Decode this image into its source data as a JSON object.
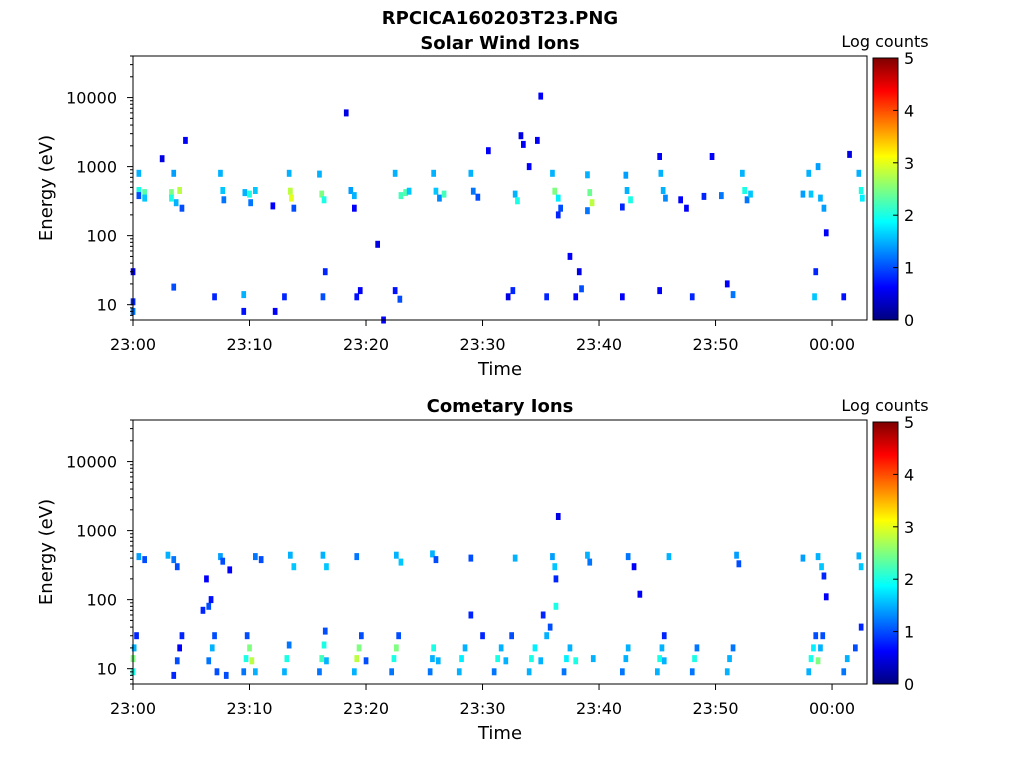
{
  "figure_title": "RPCICA160203T23.PNG",
  "colormap": [
    "#00007f",
    "#0000ff",
    "#007fff",
    "#00ffff",
    "#7fff7f",
    "#ffff00",
    "#ff7f00",
    "#ff0000",
    "#7f0000"
  ],
  "chart_data": [
    {
      "type": "heatmap",
      "title": "Solar Wind Ions",
      "xlabel": "Time",
      "ylabel": "Energy (eV)",
      "yscale": "log",
      "xlim": [
        "23:00",
        "00:03"
      ],
      "ylim": [
        6,
        40000
      ],
      "x_ticks": [
        "23:00",
        "23:10",
        "23:20",
        "23:30",
        "23:40",
        "23:50",
        "00:00"
      ],
      "y_ticks": [
        "10",
        "100",
        "1000",
        "10000"
      ],
      "colorbar_label": "Log counts",
      "colorbar_ticks": [
        "0",
        "1",
        "2",
        "3",
        "4",
        "5"
      ],
      "clim": [
        0,
        5
      ],
      "grid": false,
      "cells": [
        [
          0.0,
          8,
          1.2
        ],
        [
          0.0,
          11,
          0.8
        ],
        [
          0.0,
          30,
          0.6
        ],
        [
          0.5,
          800,
          1.5
        ],
        [
          0.5,
          450,
          2.0
        ],
        [
          0.5,
          380,
          1.0
        ],
        [
          1.0,
          420,
          2.3
        ],
        [
          1.0,
          350,
          1.6
        ],
        [
          2.5,
          1300,
          0.5
        ],
        [
          3.3,
          420,
          2.5
        ],
        [
          3.3,
          350,
          2.0
        ],
        [
          3.5,
          800,
          1.4
        ],
        [
          3.7,
          300,
          1.5
        ],
        [
          4.0,
          450,
          2.8
        ],
        [
          4.2,
          250,
          1.0
        ],
        [
          3.5,
          18,
          1.0
        ],
        [
          4.5,
          2400,
          0.6
        ],
        [
          7.0,
          13,
          0.8
        ],
        [
          7.5,
          800,
          1.5
        ],
        [
          7.7,
          450,
          1.6
        ],
        [
          7.8,
          330,
          1.2
        ],
        [
          9.5,
          8,
          0.7
        ],
        [
          9.5,
          14,
          1.5
        ],
        [
          9.6,
          420,
          1.5
        ],
        [
          10.0,
          400,
          2.0
        ],
        [
          10.1,
          300,
          1.2
        ],
        [
          10.5,
          450,
          1.6
        ],
        [
          12.0,
          270,
          0.6
        ],
        [
          12.2,
          8,
          0.6
        ],
        [
          13.0,
          13,
          0.8
        ],
        [
          13.4,
          800,
          1.5
        ],
        [
          13.5,
          440,
          2.8
        ],
        [
          13.6,
          350,
          3.0
        ],
        [
          13.8,
          250,
          1.0
        ],
        [
          16.0,
          780,
          1.5
        ],
        [
          16.2,
          400,
          2.5
        ],
        [
          16.4,
          330,
          2.0
        ],
        [
          16.3,
          13,
          1.0
        ],
        [
          16.5,
          30,
          0.8
        ],
        [
          18.3,
          6000,
          0.5
        ],
        [
          18.7,
          450,
          1.4
        ],
        [
          19.0,
          380,
          1.5
        ],
        [
          19.2,
          13,
          0.7
        ],
        [
          19.5,
          16,
          0.6
        ],
        [
          19.0,
          250,
          0.6
        ],
        [
          21.0,
          75,
          0.5
        ],
        [
          21.5,
          6,
          0.6
        ],
        [
          22.5,
          800,
          1.5
        ],
        [
          22.5,
          16,
          0.7
        ],
        [
          22.9,
          12,
          1.0
        ],
        [
          23.0,
          380,
          2.2
        ],
        [
          23.4,
          420,
          2.3
        ],
        [
          23.7,
          440,
          1.6
        ],
        [
          25.8,
          800,
          1.5
        ],
        [
          26.0,
          440,
          1.6
        ],
        [
          26.3,
          350,
          1.3
        ],
        [
          26.7,
          400,
          2.2
        ],
        [
          29.0,
          800,
          1.5
        ],
        [
          29.2,
          440,
          1.2
        ],
        [
          29.6,
          360,
          1.0
        ],
        [
          30.5,
          1700,
          0.6
        ],
        [
          32.2,
          13,
          0.5
        ],
        [
          32.6,
          16,
          0.8
        ],
        [
          32.8,
          400,
          1.5
        ],
        [
          33.0,
          320,
          2.0
        ],
        [
          33.3,
          2800,
          0.5
        ],
        [
          33.5,
          2100,
          0.6
        ],
        [
          34.0,
          1000,
          0.6
        ],
        [
          34.7,
          2400,
          0.6
        ],
        [
          35.0,
          10500,
          0.6
        ],
        [
          35.5,
          13,
          0.8
        ],
        [
          36.0,
          800,
          1.5
        ],
        [
          36.2,
          440,
          2.5
        ],
        [
          36.5,
          350,
          1.8
        ],
        [
          36.7,
          250,
          1.0
        ],
        [
          36.5,
          200,
          0.8
        ],
        [
          37.5,
          50,
          0.6
        ],
        [
          38.0,
          13,
          0.6
        ],
        [
          38.3,
          30,
          0.5
        ],
        [
          38.5,
          17,
          1.0
        ],
        [
          39.0,
          760,
          1.5
        ],
        [
          39.2,
          420,
          2.4
        ],
        [
          39.4,
          300,
          2.8
        ],
        [
          39.0,
          230,
          1.2
        ],
        [
          42.0,
          13,
          0.6
        ],
        [
          42.3,
          750,
          1.4
        ],
        [
          42.4,
          450,
          1.5
        ],
        [
          42.7,
          330,
          2.0
        ],
        [
          42.0,
          260,
          0.8
        ],
        [
          45.2,
          1400,
          0.6
        ],
        [
          45.3,
          800,
          1.5
        ],
        [
          45.5,
          450,
          1.5
        ],
        [
          45.7,
          350,
          1.3
        ],
        [
          45.2,
          16,
          0.6
        ],
        [
          47.0,
          330,
          0.6
        ],
        [
          47.5,
          250,
          0.6
        ],
        [
          48.0,
          13,
          0.8
        ],
        [
          49.0,
          370,
          0.8
        ],
        [
          49.7,
          1400,
          0.6
        ],
        [
          50.5,
          380,
          1.2
        ],
        [
          51.0,
          20,
          0.6
        ],
        [
          51.5,
          14,
          1.2
        ],
        [
          52.3,
          800,
          1.5
        ],
        [
          52.5,
          450,
          2.0
        ],
        [
          52.7,
          330,
          1.2
        ],
        [
          53.0,
          400,
          1.6
        ],
        [
          57.5,
          400,
          1.4
        ],
        [
          58.0,
          800,
          1.5
        ],
        [
          58.2,
          400,
          1.6
        ],
        [
          58.5,
          13,
          1.6
        ],
        [
          58.6,
          30,
          0.8
        ],
        [
          58.8,
          1000,
          1.4
        ],
        [
          59.0,
          350,
          1.5
        ],
        [
          59.3,
          250,
          1.4
        ],
        [
          59.5,
          110,
          0.6
        ],
        [
          61.0,
          13,
          0.7
        ],
        [
          61.5,
          1500,
          0.5
        ],
        [
          62.3,
          800,
          1.5
        ],
        [
          62.5,
          450,
          2.0
        ],
        [
          62.6,
          350,
          1.8
        ]
      ]
    },
    {
      "type": "heatmap",
      "title": "Cometary Ions",
      "xlabel": "Time",
      "ylabel": "Energy (eV)",
      "yscale": "log",
      "xlim": [
        "23:00",
        "00:03"
      ],
      "ylim": [
        6,
        40000
      ],
      "x_ticks": [
        "23:00",
        "23:10",
        "23:20",
        "23:30",
        "23:40",
        "23:50",
        "00:00"
      ],
      "y_ticks": [
        "10",
        "100",
        "1000",
        "10000"
      ],
      "colorbar_label": "Log counts",
      "colorbar_ticks": [
        "0",
        "1",
        "2",
        "3",
        "4",
        "5"
      ],
      "clim": [
        0,
        5
      ],
      "grid": false,
      "cells": [
        [
          0.0,
          9,
          2.0
        ],
        [
          0.0,
          14,
          2.5
        ],
        [
          0.1,
          20,
          1.5
        ],
        [
          0.3,
          30,
          0.8
        ],
        [
          0.5,
          420,
          1.4
        ],
        [
          1.0,
          380,
          1.0
        ],
        [
          3.0,
          440,
          1.5
        ],
        [
          3.5,
          380,
          1.2
        ],
        [
          3.8,
          300,
          1.0
        ],
        [
          3.5,
          8,
          0.8
        ],
        [
          3.8,
          13,
          1.0
        ],
        [
          4.0,
          20,
          0.6
        ],
        [
          4.2,
          30,
          0.8
        ],
        [
          6.0,
          70,
          0.8
        ],
        [
          6.3,
          200,
          0.6
        ],
        [
          6.5,
          80,
          1.0
        ],
        [
          6.7,
          100,
          0.7
        ],
        [
          6.5,
          13,
          1.2
        ],
        [
          6.8,
          20,
          1.5
        ],
        [
          7.0,
          30,
          1.0
        ],
        [
          7.2,
          9,
          1.0
        ],
        [
          7.5,
          420,
          1.4
        ],
        [
          7.7,
          360,
          1.0
        ],
        [
          8.0,
          8,
          1.0
        ],
        [
          8.3,
          270,
          0.6
        ],
        [
          9.5,
          9,
          1.2
        ],
        [
          9.7,
          14,
          2.0
        ],
        [
          10.0,
          20,
          2.5
        ],
        [
          10.2,
          13,
          2.8
        ],
        [
          10.5,
          9,
          1.5
        ],
        [
          9.8,
          30,
          1.0
        ],
        [
          10.5,
          420,
          1.2
        ],
        [
          11.0,
          380,
          1.0
        ],
        [
          13.0,
          9,
          1.5
        ],
        [
          13.2,
          14,
          2.0
        ],
        [
          13.4,
          22,
          1.2
        ],
        [
          13.5,
          440,
          1.5
        ],
        [
          13.8,
          300,
          1.6
        ],
        [
          16.0,
          9,
          1.2
        ],
        [
          16.2,
          14,
          2.2
        ],
        [
          16.4,
          22,
          2.0
        ],
        [
          16.6,
          13,
          1.5
        ],
        [
          16.5,
          35,
          1.0
        ],
        [
          16.3,
          440,
          1.5
        ],
        [
          16.6,
          300,
          1.6
        ],
        [
          19.0,
          9,
          1.5
        ],
        [
          19.2,
          14,
          2.8
        ],
        [
          19.4,
          20,
          2.5
        ],
        [
          19.6,
          30,
          1.0
        ],
        [
          20.0,
          13,
          1.0
        ],
        [
          19.2,
          420,
          1.2
        ],
        [
          22.2,
          9,
          1.2
        ],
        [
          22.4,
          14,
          2.0
        ],
        [
          22.6,
          20,
          2.5
        ],
        [
          22.8,
          30,
          1.0
        ],
        [
          22.6,
          440,
          1.5
        ],
        [
          23.0,
          350,
          1.6
        ],
        [
          25.5,
          9,
          1.2
        ],
        [
          25.7,
          14,
          1.5
        ],
        [
          25.8,
          20,
          2.0
        ],
        [
          26.2,
          13,
          1.5
        ],
        [
          25.7,
          460,
          1.5
        ],
        [
          26.0,
          380,
          1.0
        ],
        [
          28.0,
          9,
          1.5
        ],
        [
          28.2,
          14,
          1.8
        ],
        [
          28.5,
          20,
          1.5
        ],
        [
          29.0,
          60,
          0.8
        ],
        [
          29.0,
          400,
          1.0
        ],
        [
          30.0,
          30,
          0.8
        ],
        [
          31.0,
          9,
          1.2
        ],
        [
          31.3,
          14,
          2.0
        ],
        [
          31.6,
          20,
          1.5
        ],
        [
          32.0,
          13,
          1.5
        ],
        [
          32.8,
          400,
          1.5
        ],
        [
          32.5,
          30,
          1.0
        ],
        [
          34.0,
          9,
          1.5
        ],
        [
          34.2,
          14,
          2.0
        ],
        [
          34.5,
          20,
          1.8
        ],
        [
          35.0,
          13,
          1.5
        ],
        [
          35.5,
          30,
          1.5
        ],
        [
          35.2,
          60,
          0.8
        ],
        [
          35.8,
          40,
          1.0
        ],
        [
          36.0,
          420,
          1.4
        ],
        [
          36.2,
          300,
          1.6
        ],
        [
          36.3,
          200,
          0.8
        ],
        [
          36.3,
          80,
          2.0
        ],
        [
          36.5,
          1600,
          0.5
        ],
        [
          37.0,
          9,
          1.2
        ],
        [
          37.2,
          14,
          1.8
        ],
        [
          37.5,
          20,
          1.5
        ],
        [
          38.0,
          13,
          2.0
        ],
        [
          39.0,
          440,
          1.5
        ],
        [
          39.2,
          350,
          1.2
        ],
        [
          39.5,
          14,
          1.5
        ],
        [
          42.0,
          9,
          1.2
        ],
        [
          42.3,
          14,
          1.5
        ],
        [
          42.5,
          20,
          1.5
        ],
        [
          42.5,
          420,
          1.2
        ],
        [
          43.0,
          300,
          0.6
        ],
        [
          43.5,
          120,
          0.6
        ],
        [
          45.0,
          9,
          1.5
        ],
        [
          45.2,
          14,
          2.0
        ],
        [
          45.4,
          20,
          1.5
        ],
        [
          45.6,
          30,
          0.8
        ],
        [
          45.6,
          13,
          1.5
        ],
        [
          46.0,
          420,
          1.5
        ],
        [
          48.0,
          9,
          1.2
        ],
        [
          48.2,
          14,
          2.0
        ],
        [
          48.4,
          20,
          1.2
        ],
        [
          51.0,
          9,
          1.5
        ],
        [
          51.2,
          14,
          1.5
        ],
        [
          51.5,
          20,
          1.2
        ],
        [
          51.8,
          440,
          1.4
        ],
        [
          52.0,
          330,
          1.0
        ],
        [
          57.5,
          400,
          1.4
        ],
        [
          58.0,
          9,
          1.5
        ],
        [
          58.2,
          14,
          2.0
        ],
        [
          58.4,
          20,
          1.8
        ],
        [
          58.6,
          30,
          1.0
        ],
        [
          58.8,
          13,
          2.5
        ],
        [
          59.0,
          20,
          1.5
        ],
        [
          59.2,
          30,
          1.0
        ],
        [
          58.8,
          420,
          1.5
        ],
        [
          59.1,
          300,
          1.6
        ],
        [
          59.3,
          220,
          0.8
        ],
        [
          59.5,
          110,
          0.6
        ],
        [
          61.0,
          9,
          1.2
        ],
        [
          61.3,
          14,
          1.5
        ],
        [
          62.0,
          20,
          1.0
        ],
        [
          62.3,
          430,
          1.5
        ],
        [
          62.5,
          300,
          1.6
        ],
        [
          62.5,
          40,
          0.8
        ]
      ]
    }
  ]
}
